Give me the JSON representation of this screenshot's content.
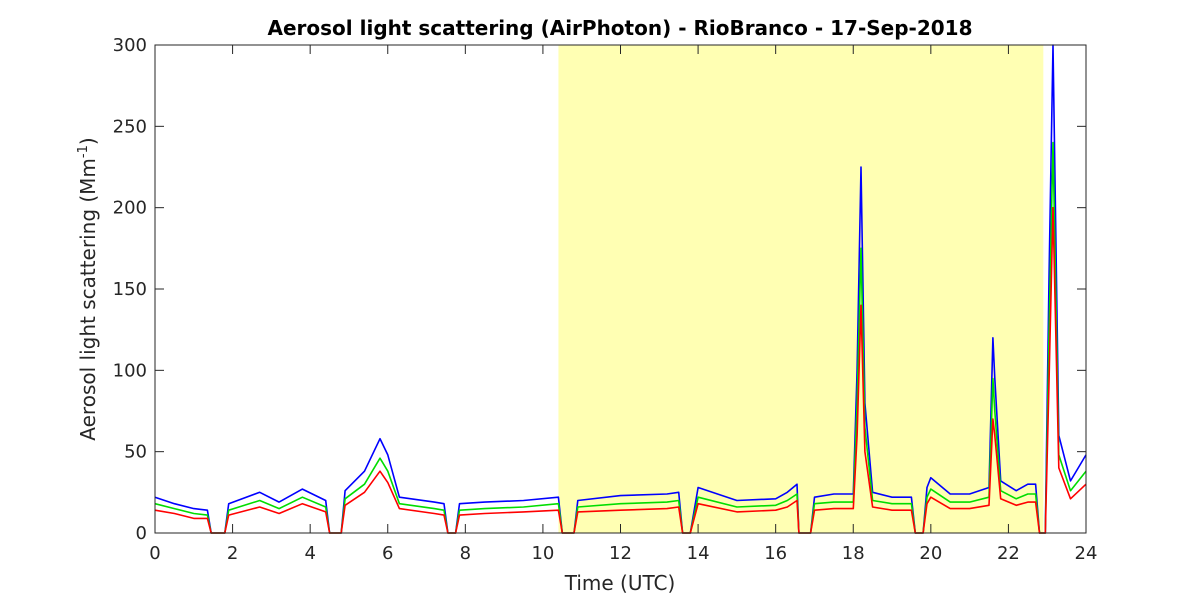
{
  "chart_data": {
    "type": "line",
    "title": "Aerosol light scattering (AirPhoton) - RioBranco - 17-Sep-2018",
    "xlabel": "Time (UTC)",
    "ylabel_main": "Aerosol light scattering (Mm",
    "ylabel_sup": "-1",
    "ylabel_close": ")",
    "xlim": [
      0,
      24
    ],
    "ylim": [
      0,
      300
    ],
    "xticks": [
      "0",
      "2",
      "4",
      "6",
      "8",
      "10",
      "12",
      "14",
      "16",
      "18",
      "20",
      "22",
      "24"
    ],
    "yticks": [
      "0",
      "50",
      "100",
      "150",
      "200",
      "250",
      "300"
    ],
    "grid": false,
    "daylight_shading": {
      "x_start": 10.4,
      "x_end": 22.9,
      "color": "#ffffb3"
    },
    "x": [
      0,
      0.5,
      1.0,
      1.35,
      1.45,
      1.8,
      1.9,
      2.7,
      3.2,
      3.8,
      4.4,
      4.5,
      4.8,
      4.9,
      5.4,
      5.8,
      6.0,
      6.3,
      7.2,
      7.45,
      7.55,
      7.75,
      7.85,
      8.5,
      9.5,
      10.4,
      10.5,
      10.8,
      10.9,
      12.0,
      13.2,
      13.5,
      13.6,
      13.8,
      14.0,
      15.0,
      16.0,
      16.3,
      16.55,
      16.6,
      16.9,
      17.0,
      17.5,
      18.0,
      18.1,
      18.2,
      18.3,
      18.5,
      19.0,
      19.5,
      19.6,
      19.8,
      19.9,
      20.0,
      20.5,
      21.0,
      21.5,
      21.6,
      21.65,
      21.8,
      22.2,
      22.5,
      22.7,
      22.8,
      22.95,
      23.05,
      23.15,
      23.3,
      23.6,
      24.0
    ],
    "series": [
      {
        "color": "#0000ff",
        "values": [
          22,
          18,
          15,
          14,
          0,
          0,
          18,
          25,
          19,
          27,
          20,
          0,
          0,
          26,
          38,
          58,
          48,
          22,
          19,
          18,
          0,
          0,
          18,
          19,
          20,
          22,
          0,
          0,
          20,
          23,
          24,
          25,
          0,
          0,
          28,
          20,
          21,
          25,
          30,
          0,
          0,
          22,
          24,
          24,
          100,
          225,
          80,
          25,
          22,
          22,
          0,
          0,
          28,
          34,
          24,
          24,
          28,
          120,
          95,
          32,
          26,
          30,
          30,
          0,
          0,
          160,
          300,
          60,
          32,
          48
        ]
      },
      {
        "color": "#00dd00",
        "values": [
          18,
          15,
          12,
          11,
          0,
          0,
          14,
          20,
          15,
          22,
          16,
          0,
          0,
          21,
          30,
          46,
          38,
          18,
          15,
          14,
          0,
          0,
          14,
          15,
          16,
          18,
          0,
          0,
          16,
          18,
          19,
          20,
          0,
          0,
          22,
          16,
          17,
          20,
          24,
          0,
          0,
          18,
          19,
          19,
          80,
          175,
          65,
          20,
          18,
          18,
          0,
          0,
          22,
          27,
          19,
          19,
          22,
          95,
          75,
          26,
          21,
          24,
          24,
          0,
          0,
          125,
          240,
          48,
          26,
          38
        ]
      },
      {
        "color": "#ff0000",
        "values": [
          14,
          12,
          9,
          9,
          0,
          0,
          11,
          16,
          12,
          18,
          13,
          0,
          0,
          17,
          25,
          38,
          31,
          15,
          12,
          11,
          0,
          0,
          11,
          12,
          13,
          14,
          0,
          0,
          13,
          14,
          15,
          16,
          0,
          0,
          18,
          13,
          14,
          16,
          20,
          0,
          0,
          14,
          15,
          15,
          60,
          140,
          50,
          16,
          14,
          14,
          0,
          0,
          18,
          22,
          15,
          15,
          17,
          70,
          60,
          21,
          17,
          19,
          19,
          0,
          0,
          95,
          200,
          40,
          21,
          30
        ]
      }
    ]
  }
}
